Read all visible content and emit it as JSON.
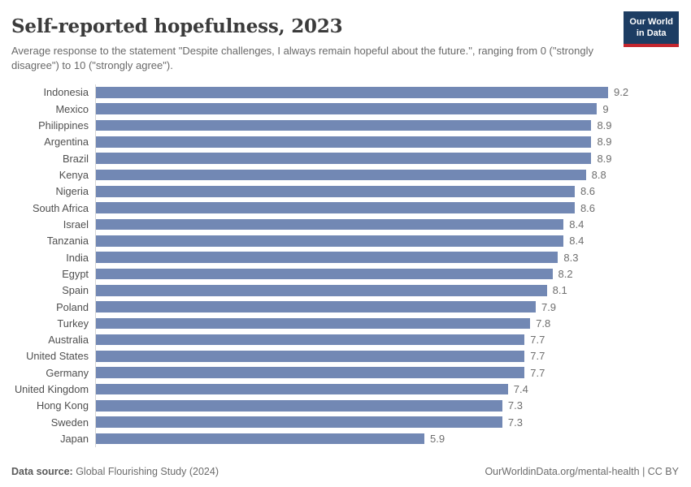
{
  "header": {
    "title": "Self-reported hopefulness, 2023",
    "subtitle": "Average response to the statement \"Despite challenges, I always remain hopeful about the future.\", ranging from 0 (\"strongly disagree\") to 10 (\"strongly agree\").",
    "logo": {
      "line1": "Our World",
      "line2": "in Data"
    }
  },
  "chart_data": {
    "type": "bar",
    "orientation": "horizontal",
    "title": "Self-reported hopefulness, 2023",
    "xlabel": "",
    "ylabel": "",
    "grid": false,
    "legend": false,
    "xlim": [
      0,
      10.47
    ],
    "bar_color": "#7288b4",
    "categories": [
      "Indonesia",
      "Mexico",
      "Philippines",
      "Argentina",
      "Brazil",
      "Kenya",
      "Nigeria",
      "South Africa",
      "Israel",
      "Tanzania",
      "India",
      "Egypt",
      "Spain",
      "Poland",
      "Turkey",
      "Australia",
      "United States",
      "Germany",
      "United Kingdom",
      "Hong Kong",
      "Sweden",
      "Japan"
    ],
    "values": [
      9.2,
      9,
      8.9,
      8.9,
      8.9,
      8.8,
      8.6,
      8.6,
      8.4,
      8.4,
      8.3,
      8.2,
      8.1,
      7.9,
      7.8,
      7.7,
      7.7,
      7.7,
      7.4,
      7.3,
      7.3,
      5.9
    ],
    "value_labels": [
      "9.2",
      "9",
      "8.9",
      "8.9",
      "8.9",
      "8.8",
      "8.6",
      "8.6",
      "8.4",
      "8.4",
      "8.3",
      "8.2",
      "8.1",
      "7.9",
      "7.8",
      "7.7",
      "7.7",
      "7.7",
      "7.4",
      "7.3",
      "7.3",
      "5.9"
    ]
  },
  "footer": {
    "datasource_label": "Data source:",
    "datasource_value": " Global Flourishing Study (2024)",
    "link": "OurWorldinData.org/mental-health | CC BY"
  },
  "colors": {
    "bar": "#7288b4",
    "axis_line": "#d6d6d6",
    "logo_navy": "#1d3d63",
    "logo_red": "#c4262e"
  }
}
